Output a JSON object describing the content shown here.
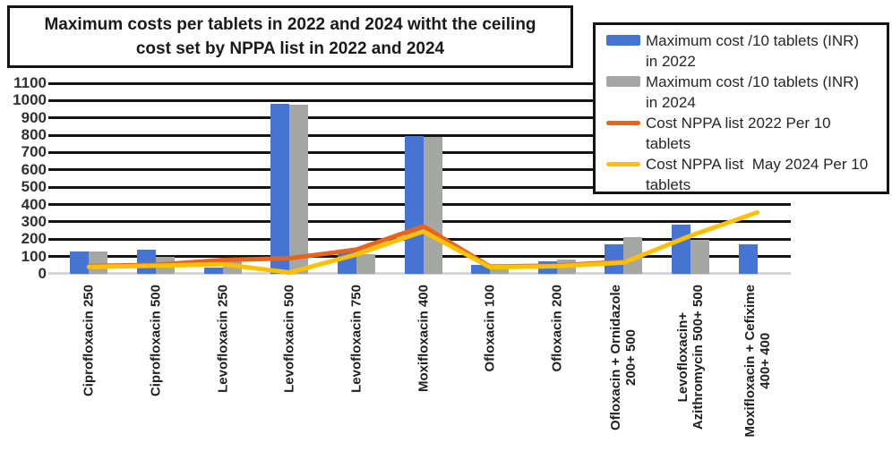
{
  "title": "Maximum costs per tablets in 2022 and 2024 witht the ceiling\ncost set by NPPA list in 2022 and 2024",
  "legend": {
    "items": [
      {
        "swatch": "bar",
        "color": "#4674d2",
        "label": "Maximum cost /10 tablets (INR)\nin 2022"
      },
      {
        "swatch": "bar",
        "color": "#a5a7a5",
        "label": "Maximum cost /10 tablets (INR)\nin 2024"
      },
      {
        "swatch": "line",
        "color": "#e8641b",
        "label": "Cost NPPA list 2022 Per 10\ntablets"
      },
      {
        "swatch": "line",
        "color": "#ffc000",
        "label": "Cost NPPA list  May 2024 Per 10\ntablets"
      }
    ]
  },
  "chart_data": {
    "type": "bar",
    "categories": [
      "Ciprofloxacin 250",
      "Ciprofloxacin 500",
      "Levofloxacin 250",
      "Levofloxacin 500",
      "Levofloxacin 750",
      "Moxifloxacin 400",
      "Ofloxacin 100",
      "Ofloxacin 200",
      "Ofloxacin + Ornidazole\n200+ 500",
      "Levofloxacin+\nAzithromycin 500+ 500",
      "Moxifloxacin + Cefixime\n400+ 400"
    ],
    "series": [
      {
        "name": "Maximum cost /10 tablets (INR) in 2022",
        "type": "bar",
        "color": "#4674d2",
        "values": [
          130,
          140,
          35,
          980,
          135,
          795,
          50,
          70,
          170,
          285,
          170
        ]
      },
      {
        "name": "Maximum cost /10 tablets (INR) in 2024",
        "type": "bar",
        "color": "#a5a7a5",
        "values": [
          127,
          100,
          80,
          975,
          115,
          790,
          42,
          85,
          210,
          195,
          null
        ]
      },
      {
        "name": "Cost NPPA list 2022 Per 10 tablets",
        "type": "line",
        "color": "#e8641b",
        "values": [
          45,
          52,
          80,
          90,
          140,
          275,
          42,
          48,
          70,
          null,
          null
        ]
      },
      {
        "name": "Cost NPPA list  May 2024 Per 10 tablets",
        "type": "line",
        "color": "#ffc000",
        "values": [
          40,
          47,
          55,
          8,
          112,
          245,
          38,
          44,
          65,
          220,
          355
        ]
      }
    ],
    "title": "Maximum costs per tablets in 2022 and 2024 witht the ceiling cost set by NPPA list in 2022 and 2024",
    "xlabel": "",
    "ylabel": "",
    "ylim": [
      0,
      1100
    ],
    "ytick_step": 100,
    "y_ticks": [
      1100,
      1000,
      900,
      800,
      700,
      600,
      500,
      400,
      300,
      200,
      100,
      0
    ],
    "grid": true,
    "legend_position": "top-right"
  }
}
